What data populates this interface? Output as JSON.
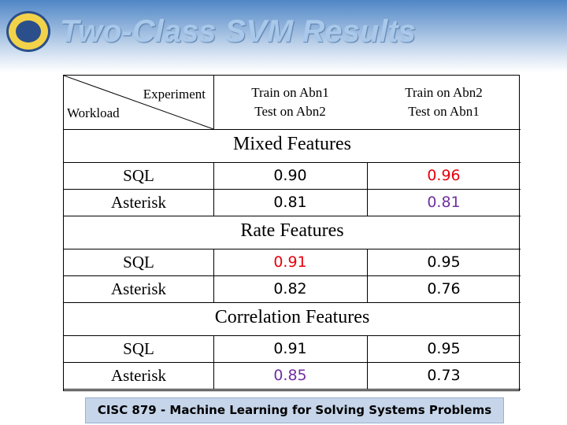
{
  "header": {
    "title": "Two-Class SVM Results"
  },
  "table": {
    "corner": {
      "top": "Experiment",
      "bottom": "Workload"
    },
    "columns": [
      [
        "Train on Abn1",
        "Test on Abn2"
      ],
      [
        "Train on Abn2",
        "Test on Abn1"
      ]
    ],
    "sections": [
      {
        "title": "Mixed Features",
        "rows": [
          {
            "label": "SQL",
            "cells": [
              {
                "text": "0.90",
                "color": "#000000"
              },
              {
                "text": "0.96",
                "color": "#e8000b"
              }
            ]
          },
          {
            "label": "Asterisk",
            "cells": [
              {
                "text": "0.81",
                "color": "#000000"
              },
              {
                "text": "0.81",
                "color": "#7030a0"
              }
            ]
          }
        ]
      },
      {
        "title": "Rate Features",
        "rows": [
          {
            "label": "SQL",
            "cells": [
              {
                "text": "0.91",
                "color": "#e8000b"
              },
              {
                "text": "0.95",
                "color": "#000000"
              }
            ]
          },
          {
            "label": "Asterisk",
            "cells": [
              {
                "text": "0.82",
                "color": "#000000"
              },
              {
                "text": "0.76",
                "color": "#000000"
              }
            ]
          }
        ]
      },
      {
        "title": "Correlation Features",
        "rows": [
          {
            "label": "SQL",
            "cells": [
              {
                "text": "0.91",
                "color": "#000000"
              },
              {
                "text": "0.95",
                "color": "#000000"
              }
            ]
          },
          {
            "label": "Asterisk",
            "cells": [
              {
                "text": "0.85",
                "color": "#7030a0"
              },
              {
                "text": "0.73",
                "color": "#000000"
              }
            ]
          }
        ]
      }
    ]
  },
  "footer": {
    "text": "CISC 879 - Machine Learning for Solving Systems Problems"
  }
}
